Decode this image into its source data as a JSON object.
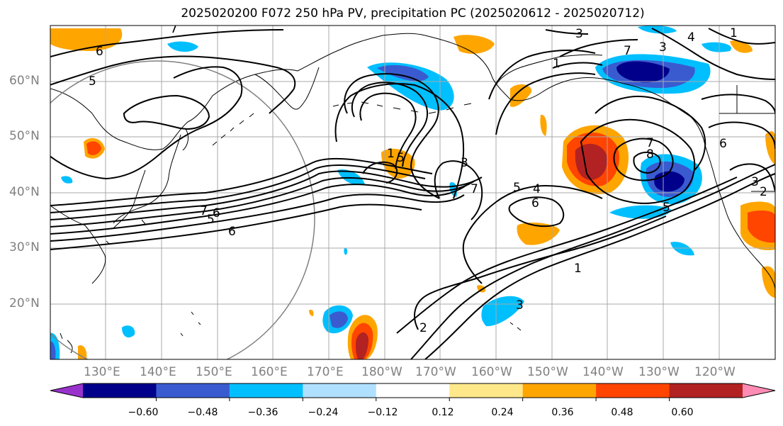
{
  "title": "2025020200 F072 250 hPa PV, precipitation PC (2025020612 - 2025020712)",
  "map": {
    "lat_labels": [
      "60°N",
      "50°N",
      "40°N",
      "30°N",
      "20°N"
    ],
    "lon_labels": [
      "130°E",
      "140°E",
      "150°E",
      "160°E",
      "170°E",
      "180°W",
      "170°W",
      "160°W",
      "150°W",
      "140°W",
      "130°W",
      "120°W"
    ],
    "contour_labels": [
      "7",
      "6",
      "5",
      "3",
      "1",
      "4",
      "3",
      "1",
      "7",
      "5",
      "6",
      "3",
      "7",
      "2",
      "5",
      "4",
      "6",
      "7",
      "8",
      "6",
      "5",
      "3",
      "1",
      "2",
      "7",
      "6",
      "5",
      "1",
      "3"
    ],
    "colors": {
      "coast": "#000000",
      "grid": "#a9a9a9",
      "circle": "#808080",
      "contour": "#000000"
    }
  },
  "colorbar": {
    "tick_labels": [
      "−0.60",
      "−0.48",
      "−0.36",
      "−0.24",
      "−0.12",
      "0.12",
      "0.24",
      "0.36",
      "0.48",
      "0.60"
    ],
    "bins": [
      {
        "color": "#9932cc"
      },
      {
        "color": "#00008b"
      },
      {
        "color": "#3a5bd0"
      },
      {
        "color": "#00bfff"
      },
      {
        "color": "#b0e0ff"
      },
      {
        "color": "#ffffff"
      },
      {
        "color": "#ffe88a"
      },
      {
        "color": "#ffa500"
      },
      {
        "color": "#ff4500"
      },
      {
        "color": "#b22222"
      },
      {
        "color": "#ff8cb4"
      }
    ]
  }
}
